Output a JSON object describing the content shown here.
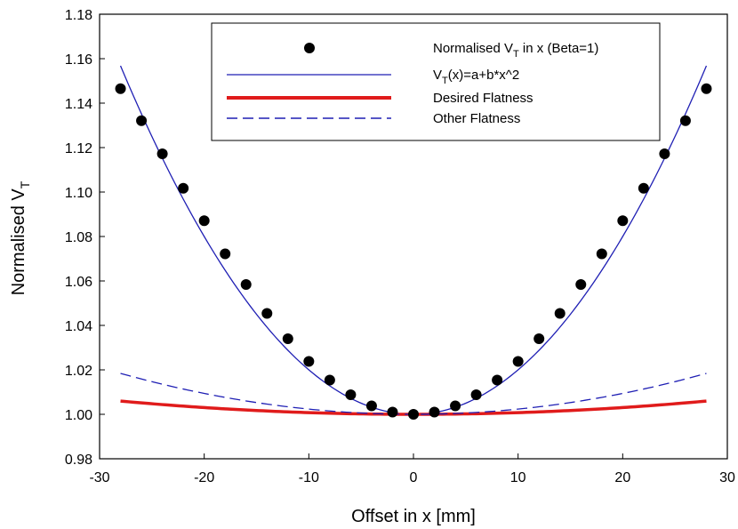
{
  "chart_data": {
    "type": "scatter",
    "xlabel": "Offset in x  [mm]",
    "ylabel": "Normalised V",
    "ylabel_sub": "T",
    "xlim": [
      -30,
      30
    ],
    "ylim": [
      0.98,
      1.18
    ],
    "xticks": [
      -30,
      -20,
      -10,
      0,
      10,
      20,
      30
    ],
    "yticks": [
      0.98,
      1.0,
      1.02,
      1.04,
      1.06,
      1.08,
      1.1,
      1.12,
      1.14,
      1.16,
      1.18
    ],
    "grid": false,
    "legend_position": "top-right",
    "legend": [
      {
        "prefix": "Normalised V",
        "sub": "T",
        "suffix": " in x (Beta=1)"
      },
      {
        "prefix": "V",
        "sub": "T",
        "suffix": "(x)=a+b*x^2"
      },
      {
        "prefix": "Desired Flatness",
        "sub": "",
        "suffix": ""
      },
      {
        "prefix": "Other Flatness",
        "sub": "",
        "suffix": ""
      }
    ],
    "series": [
      {
        "type": "scatter",
        "color": "#000000",
        "x": [
          -28,
          -26,
          -24,
          -22,
          -20,
          -18,
          -16,
          -14,
          -12,
          -10,
          -8,
          -6,
          -4,
          -2,
          0,
          2,
          4,
          6,
          8,
          10,
          12,
          14,
          16,
          18,
          20,
          22,
          24,
          26,
          28
        ],
        "y": [
          1.1465,
          1.1321,
          1.1172,
          1.1017,
          1.0871,
          1.0722,
          1.0584,
          1.0454,
          1.034,
          1.0238,
          1.0154,
          1.0088,
          1.0038,
          1.001,
          1.0,
          1.001,
          1.0038,
          1.0088,
          1.0154,
          1.0238,
          1.034,
          1.0454,
          1.0584,
          1.0722,
          1.0871,
          1.1017,
          1.1172,
          1.1321,
          1.1465
        ]
      },
      {
        "type": "quadratic",
        "color": "#1f1fb4",
        "style": "solid",
        "a": 1.0,
        "b": 0.0002,
        "x_range": [
          -28,
          28
        ]
      },
      {
        "type": "quadratic",
        "color": "#e01b1b",
        "style": "thick",
        "a": 1.0,
        "b": 7.6e-06,
        "x_range": [
          -28,
          28
        ]
      },
      {
        "type": "quadratic",
        "color": "#1f1fb4",
        "style": "dashed",
        "a": 1.0,
        "b": 2.35e-05,
        "x_range": [
          -28,
          28
        ]
      }
    ]
  }
}
